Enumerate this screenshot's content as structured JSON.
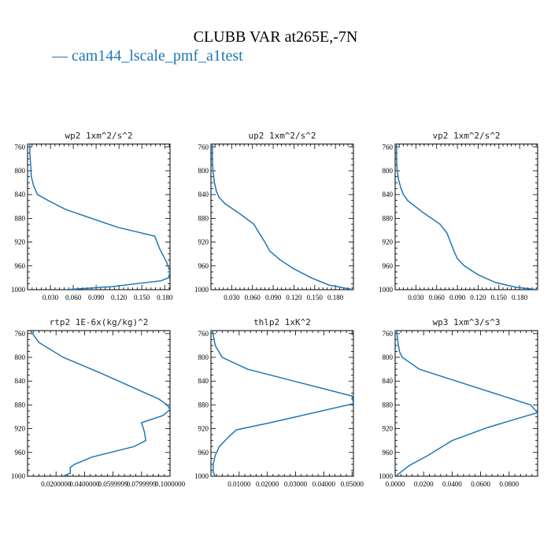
{
  "title": "CLUBB VAR at265E,-7N",
  "legend": {
    "label": "— cam144_lscale_pmf_a1test",
    "color": "#1f77b4"
  },
  "chart_data": [
    {
      "type": "line",
      "title": "wp2  1xm^2/s^2",
      "xticks": [
        "0.030",
        "0.060",
        "0.090",
        "0.120",
        "0.150",
        "0.180"
      ],
      "xtick_values": [
        0.03,
        0.06,
        0.09,
        0.12,
        0.15,
        0.18
      ],
      "xlim": [
        0,
        0.187
      ],
      "yticks": [
        760,
        800,
        840,
        880,
        920,
        960,
        1000
      ],
      "ylim": [
        1000,
        755
      ],
      "series": [
        {
          "x": [
            0.003,
            0.003,
            0.004,
            0.005,
            0.008,
            0.013,
            0.027,
            0.05,
            0.118,
            0.167,
            0.173,
            0.177,
            0.183,
            0.187,
            0.185,
            0.175,
            0.11,
            0.05
          ],
          "y": [
            755,
            770,
            790,
            810,
            825,
            840,
            850,
            865,
            895,
            910,
            930,
            940,
            955,
            970,
            980,
            985,
            995,
            1000
          ]
        }
      ]
    },
    {
      "type": "line",
      "title": "up2  1xm^2/s^2",
      "xticks": [
        "0.030",
        "0.060",
        "0.090",
        "0.120",
        "0.150",
        "0.180"
      ],
      "xtick_values": [
        0.03,
        0.06,
        0.09,
        0.12,
        0.15,
        0.18
      ],
      "xlim": [
        0,
        0.206
      ],
      "yticks": [
        760,
        800,
        840,
        880,
        920,
        960,
        1000
      ],
      "ylim": [
        1000,
        755
      ],
      "series": [
        {
          "x": [
            0.002,
            0.002,
            0.003,
            0.005,
            0.008,
            0.012,
            0.02,
            0.045,
            0.062,
            0.07,
            0.078,
            0.085,
            0.1,
            0.12,
            0.145,
            0.17,
            0.206
          ],
          "y": [
            755,
            780,
            800,
            820,
            835,
            845,
            855,
            875,
            890,
            905,
            920,
            935,
            950,
            965,
            980,
            992,
            1000
          ]
        }
      ]
    },
    {
      "type": "line",
      "title": "vp2  1xm^2/s^2",
      "xticks": [
        "0.030",
        "0.060",
        "0.090",
        "0.120",
        "0.150",
        "0.180"
      ],
      "xtick_values": [
        0.03,
        0.06,
        0.09,
        0.12,
        0.15,
        0.18
      ],
      "xlim": [
        0,
        0.206
      ],
      "yticks": [
        760,
        800,
        840,
        880,
        920,
        960,
        1000
      ],
      "ylim": [
        1000,
        755
      ],
      "series": [
        {
          "x": [
            0.002,
            0.002,
            0.003,
            0.005,
            0.008,
            0.012,
            0.018,
            0.04,
            0.065,
            0.075,
            0.08,
            0.085,
            0.09,
            0.1,
            0.12,
            0.145,
            0.175,
            0.206
          ],
          "y": [
            755,
            780,
            800,
            815,
            828,
            840,
            850,
            870,
            890,
            905,
            920,
            935,
            948,
            960,
            975,
            988,
            996,
            1000
          ]
        }
      ]
    },
    {
      "type": "line",
      "title": "rtp2  1E-6x(kg/kg)^2",
      "xticks": [
        "0.0200000",
        "0.0400000",
        "0.0599999",
        "0.0799999",
        "0.1000000"
      ],
      "xtick_values": [
        0.02,
        0.04,
        0.06,
        0.08,
        0.1
      ],
      "xlim": [
        0,
        0.1
      ],
      "yticks": [
        760,
        800,
        840,
        880,
        920,
        960,
        1000
      ],
      "ylim": [
        1000,
        755
      ],
      "series": [
        {
          "x": [
            0.002,
            0.008,
            0.025,
            0.05,
            0.092,
            0.098,
            0.1,
            0.095,
            0.08,
            0.082,
            0.083,
            0.075,
            0.045,
            0.033,
            0.03,
            0.03,
            0.025
          ],
          "y": [
            755,
            775,
            800,
            825,
            870,
            880,
            888,
            898,
            910,
            925,
            940,
            950,
            968,
            980,
            985,
            995,
            1000
          ]
        }
      ]
    },
    {
      "type": "line",
      "title": "thlp2  1xK^2",
      "xticks": [
        "0.01000",
        "0.02000",
        "0.03000",
        "0.04000",
        "0.05000"
      ],
      "xtick_values": [
        0.01,
        0.02,
        0.03,
        0.04,
        0.05
      ],
      "xlim": [
        0,
        0.0505
      ],
      "yticks": [
        760,
        800,
        840,
        880,
        920,
        960,
        1000
      ],
      "ylim": [
        1000,
        755
      ],
      "series": [
        {
          "x": [
            0.0005,
            0.0015,
            0.004,
            0.013,
            0.05,
            0.0505,
            0.021,
            0.009,
            0.006,
            0.003,
            0.0015,
            0.0008,
            0.0008,
            0.0015
          ],
          "y": [
            755,
            780,
            800,
            820,
            865,
            878,
            910,
            922,
            935,
            950,
            965,
            980,
            993,
            1000
          ]
        }
      ]
    },
    {
      "type": "line",
      "title": "wp3  1xm^3/s^3",
      "xticks": [
        "0.0000",
        "0.0200",
        "0.0400",
        "0.0600",
        "0.0800"
      ],
      "xtick_values": [
        0.0,
        0.02,
        0.04,
        0.06,
        0.08
      ],
      "xlim": [
        0,
        0.1
      ],
      "yticks": [
        760,
        800,
        840,
        880,
        920,
        960,
        1000
      ],
      "ylim": [
        1000,
        755
      ],
      "series": [
        {
          "x": [
            0.001,
            0.002,
            0.003,
            0.005,
            0.017,
            0.043,
            0.095,
            0.1,
            0.083,
            0.065,
            0.04,
            0.023,
            0.01,
            0.003,
            0.0005
          ],
          "y": [
            755,
            775,
            790,
            800,
            820,
            840,
            880,
            893,
            905,
            918,
            940,
            965,
            982,
            995,
            1000
          ]
        }
      ]
    }
  ]
}
